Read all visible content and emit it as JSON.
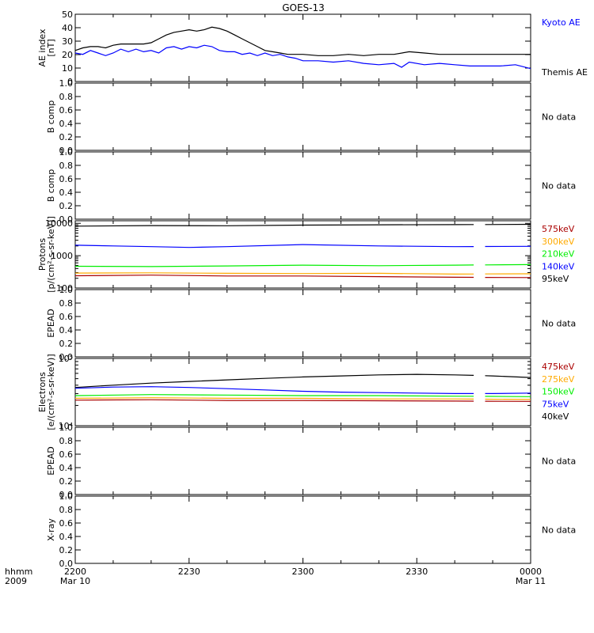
{
  "title": "GOES-13",
  "xaxis": {
    "labels_col": [
      "hhmm",
      "2009"
    ],
    "ticks": [
      {
        "time": "2200",
        "date": "Mar 10",
        "min": 0
      },
      {
        "time": "2230",
        "date": "",
        "min": 30
      },
      {
        "time": "2300",
        "date": "",
        "min": 60
      },
      {
        "time": "2330",
        "date": "",
        "min": 90
      },
      {
        "time": "0000",
        "date": "Mar 11",
        "min": 120
      }
    ],
    "range_minutes": [
      0,
      120
    ]
  },
  "colors": {
    "black": "#000000",
    "blue": "#0000ff",
    "green": "#00ee00",
    "orange": "#ffaa00",
    "darkred": "#aa0000"
  },
  "chart_data": [
    {
      "type": "line",
      "ylabel": [
        "AE index",
        "[nT]"
      ],
      "yscale": "linear",
      "ylim": [
        0,
        52
      ],
      "ticks": [
        "0",
        "10",
        "20",
        "30",
        "40",
        "50"
      ],
      "legend": [
        {
          "label": "Kyoto AE",
          "color": "#0000ff"
        },
        {
          "label": "Themis AE",
          "color": "#000000"
        }
      ],
      "series": [
        {
          "name": "Themis AE",
          "color": "#000000",
          "x": [
            0,
            2,
            4,
            6,
            8,
            10,
            12,
            15,
            18,
            20,
            22,
            24,
            26,
            28,
            30,
            32,
            34,
            36,
            38,
            40,
            42,
            44,
            46,
            48,
            50,
            52,
            54,
            56,
            58,
            60,
            64,
            68,
            72,
            76,
            80,
            84,
            88,
            92,
            96,
            100,
            104,
            108,
            112,
            116,
            120
          ],
          "y": [
            24,
            26,
            27,
            27,
            26,
            28,
            29,
            29,
            29,
            30,
            33,
            36,
            38,
            39,
            40,
            39,
            40,
            42,
            41,
            39,
            36,
            33,
            30,
            27,
            24,
            23,
            22,
            21,
            21,
            21,
            20,
            20,
            21,
            20,
            21,
            21,
            23,
            22,
            21,
            21,
            21,
            21,
            21,
            21,
            21
          ]
        },
        {
          "name": "Kyoto AE",
          "color": "#0000ff",
          "x": [
            0,
            2,
            4,
            6,
            8,
            10,
            12,
            14,
            16,
            18,
            20,
            22,
            24,
            26,
            28,
            30,
            32,
            34,
            36,
            38,
            40,
            42,
            44,
            46,
            48,
            50,
            52,
            54,
            56,
            58,
            60,
            64,
            68,
            72,
            76,
            80,
            84,
            86,
            88,
            92,
            96,
            100,
            104,
            108,
            112,
            116,
            120
          ],
          "y": [
            22,
            21,
            24,
            22,
            20,
            22,
            25,
            23,
            25,
            23,
            24,
            22,
            26,
            27,
            25,
            27,
            26,
            28,
            27,
            24,
            23,
            23,
            21,
            22,
            20,
            22,
            20,
            21,
            19,
            18,
            16,
            16,
            15,
            16,
            14,
            13,
            14,
            11,
            15,
            13,
            14,
            13,
            12,
            12,
            12,
            13,
            10
          ]
        }
      ]
    },
    {
      "type": "line",
      "ylabel": [
        "B comp"
      ],
      "yscale": "linear",
      "ylim": [
        0,
        1
      ],
      "ticks": [
        "0.0",
        "0.2",
        "0.4",
        "0.6",
        "0.8",
        "1.0"
      ],
      "note": "No data",
      "series": []
    },
    {
      "type": "line",
      "ylabel": [
        "B comp"
      ],
      "yscale": "linear",
      "ylim": [
        0,
        1
      ],
      "ticks": [
        "0.0",
        "0.2",
        "0.4",
        "0.6",
        "0.8",
        "1.0"
      ],
      "note": "No data",
      "series": []
    },
    {
      "type": "line",
      "ylabel": [
        "Protons",
        "[p/(cm²-s-sr-keV)]"
      ],
      "yscale": "log",
      "ylim": [
        100,
        12000
      ],
      "ticks": [
        "100",
        "1000",
        "10000"
      ],
      "tickvals": [
        100,
        1000,
        10000
      ],
      "legend": [
        {
          "label": "575keV",
          "color": "#aa0000"
        },
        {
          "label": "300keV",
          "color": "#ffaa00"
        },
        {
          "label": "210keV",
          "color": "#00ee00"
        },
        {
          "label": "140keV",
          "color": "#0000ff"
        },
        {
          "label": "95keV",
          "color": "#000000"
        }
      ],
      "gap": [
        105,
        108
      ],
      "series": [
        {
          "name": "95keV",
          "color": "#000000",
          "x": [
            0,
            20,
            40,
            60,
            80,
            100,
            120
          ],
          "y": [
            8200,
            8500,
            8400,
            8800,
            9000,
            9100,
            9300
          ]
        },
        {
          "name": "140keV",
          "color": "#0000ff",
          "x": [
            0,
            10,
            20,
            30,
            40,
            60,
            80,
            100,
            120
          ],
          "y": [
            2100,
            2000,
            1900,
            1800,
            1900,
            2200,
            2000,
            1900,
            1950
          ]
        },
        {
          "name": "210keV",
          "color": "#00ee00",
          "x": [
            0,
            20,
            40,
            60,
            80,
            100,
            120
          ],
          "y": [
            470,
            460,
            480,
            510,
            490,
            510,
            530
          ]
        },
        {
          "name": "300keV",
          "color": "#ffaa00",
          "x": [
            0,
            20,
            40,
            60,
            80,
            100,
            120
          ],
          "y": [
            290,
            295,
            285,
            280,
            285,
            270,
            275
          ]
        },
        {
          "name": "575keV",
          "color": "#aa0000",
          "x": [
            0,
            20,
            40,
            60,
            80,
            100,
            120
          ],
          "y": [
            240,
            250,
            235,
            235,
            225,
            215,
            210
          ]
        }
      ]
    },
    {
      "type": "line",
      "ylabel": [
        "EPEAD"
      ],
      "yscale": "linear",
      "ylim": [
        0,
        1
      ],
      "ticks": [
        "0.0",
        "0.2",
        "0.4",
        "0.6",
        "0.8",
        "1.0"
      ],
      "note": "No data",
      "series": []
    },
    {
      "type": "line",
      "ylabel": [
        "Electrons",
        "[e/(cm²-s-sr-keV)]"
      ],
      "yscale": "log",
      "ylim": [
        10000,
        100000
      ],
      "ticks": [
        "10⁴",
        "10⁵"
      ],
      "tickvals": [
        10000,
        100000
      ],
      "legend": [
        {
          "label": "475keV",
          "color": "#aa0000"
        },
        {
          "label": "275keV",
          "color": "#ffaa00"
        },
        {
          "label": "150keV",
          "color": "#00ee00"
        },
        {
          "label": "75keV",
          "color": "#0000ff"
        },
        {
          "label": "40keV",
          "color": "#000000"
        }
      ],
      "gap": [
        105,
        108
      ],
      "series": [
        {
          "name": "40keV",
          "color": "#000000",
          "x": [
            0,
            10,
            20,
            30,
            40,
            50,
            60,
            70,
            80,
            90,
            100,
            110,
            120
          ],
          "y": [
            37000,
            40000,
            43000,
            45500,
            48000,
            50500,
            53000,
            55000,
            57000,
            58000,
            57000,
            55000,
            52000
          ]
        },
        {
          "name": "75keV",
          "color": "#0000ff",
          "x": [
            0,
            10,
            20,
            30,
            40,
            50,
            60,
            70,
            80,
            90,
            100,
            110,
            120
          ],
          "y": [
            36000,
            37500,
            38000,
            37000,
            35500,
            34000,
            32500,
            31500,
            31000,
            30500,
            30000,
            30000,
            30500
          ]
        },
        {
          "name": "150keV",
          "color": "#00ee00",
          "x": [
            0,
            20,
            40,
            60,
            80,
            100,
            120
          ],
          "y": [
            28000,
            29000,
            28500,
            28000,
            28000,
            27500,
            27000
          ]
        },
        {
          "name": "275keV",
          "color": "#ffaa00",
          "x": [
            0,
            20,
            40,
            60,
            80,
            100,
            120
          ],
          "y": [
            25500,
            26000,
            25500,
            25500,
            25000,
            25000,
            24500
          ]
        },
        {
          "name": "475keV",
          "color": "#aa0000",
          "x": [
            0,
            20,
            40,
            60,
            80,
            100,
            120
          ],
          "y": [
            24000,
            24300,
            23700,
            23700,
            23500,
            23200,
            23000
          ]
        }
      ]
    },
    {
      "type": "line",
      "ylabel": [
        "EPEAD"
      ],
      "yscale": "linear",
      "ylim": [
        0,
        1
      ],
      "ticks": [
        "0.0",
        "0.2",
        "0.4",
        "0.6",
        "0.8",
        "1.0"
      ],
      "note": "No data",
      "series": []
    },
    {
      "type": "line",
      "ylabel": [
        "X-ray"
      ],
      "yscale": "linear",
      "ylim": [
        0,
        1
      ],
      "ticks": [
        "0.0",
        "0.2",
        "0.4",
        "0.6",
        "0.8",
        "1.0"
      ],
      "note": "No data",
      "series": []
    }
  ]
}
